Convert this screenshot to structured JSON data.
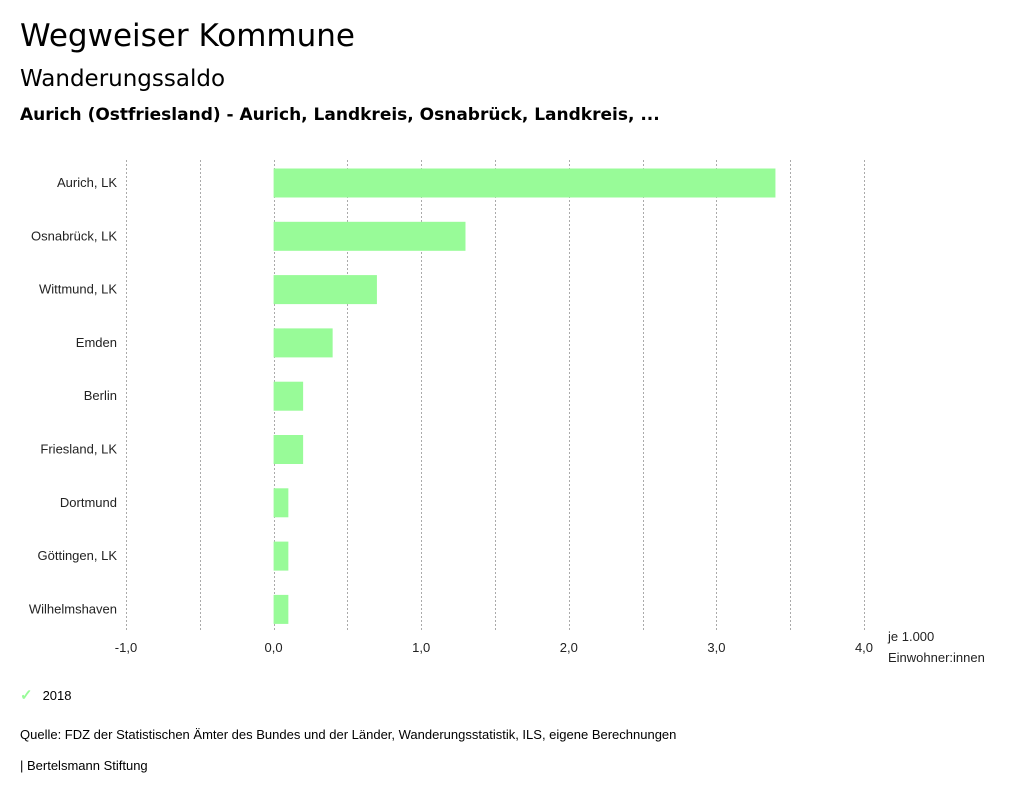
{
  "header": {
    "title": "Wegweiser Kommune",
    "subtitle": "Wanderungssaldo",
    "region": "Aurich (Ostfriesland) - Aurich, Landkreis, Osnabrück, Landkreis, ..."
  },
  "chart_data": {
    "type": "bar",
    "orientation": "horizontal",
    "categories": [
      "Aurich, LK",
      "Osnabrück, LK",
      "Wittmund, LK",
      "Emden",
      "Berlin",
      "Friesland, LK",
      "Dortmund",
      "Göttingen, LK",
      "Wilhelmshaven"
    ],
    "series": [
      {
        "name": "2018",
        "values": [
          3.4,
          1.3,
          0.7,
          0.4,
          0.2,
          0.2,
          0.1,
          0.1,
          0.1
        ],
        "color": "#98fb98"
      }
    ],
    "xlim": [
      -1.0,
      4.0
    ],
    "xticks": [
      -1,
      0,
      1,
      2,
      3,
      4
    ],
    "xtick_labels": [
      "-1,0",
      "0,0",
      "1,0",
      "2,0",
      "3,0",
      "4,0"
    ],
    "unit_label": [
      "je 1.000",
      "Einwohner:innen"
    ],
    "grid": "vertical dotted every 0.5",
    "legend": "bottom-left"
  },
  "legend": {
    "label": "2018",
    "icon": "check-icon"
  },
  "footer": {
    "source": "Quelle: FDZ der Statistischen Ämter des Bundes und der Länder, Wanderungsstatistik, ILS, eigene Berechnungen",
    "credit": "| Bertelsmann Stiftung"
  }
}
